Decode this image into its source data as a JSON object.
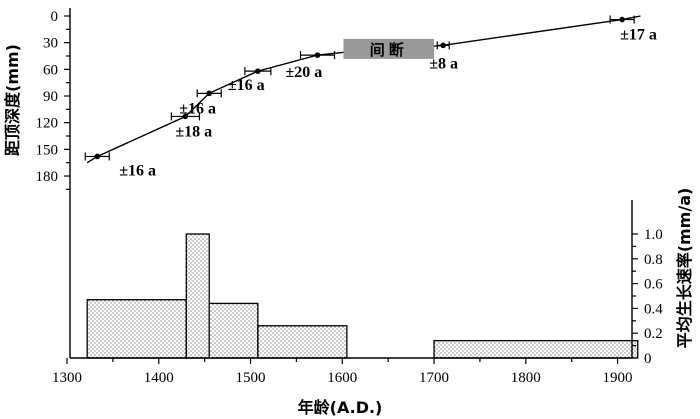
{
  "chart_data": {
    "type": "line",
    "x_axis": {
      "label": "年龄(A.D.)",
      "range": [
        1300,
        1930
      ],
      "ticks": [
        1300,
        1400,
        1500,
        1600,
        1700,
        1800,
        1900
      ]
    },
    "y_axis_left": {
      "label": "距顶深度(mm)",
      "range": [
        0,
        180
      ],
      "reversed": true,
      "ticks": [
        0,
        30,
        60,
        90,
        120,
        150,
        180
      ]
    },
    "y_axis_right": {
      "label": "平均生长速率(mm/a)",
      "range": [
        0,
        1.0
      ],
      "ticks": [
        "0",
        "0.2",
        "0.4",
        "0.6",
        "0.8",
        "1.0"
      ]
    },
    "age_points": [
      {
        "age": 1333,
        "depth": 158,
        "error": "±16 a"
      },
      {
        "age": 1429,
        "depth": 113,
        "error": "±18 a"
      },
      {
        "age": 1455,
        "depth": 87,
        "error": "±16 a"
      },
      {
        "age": 1508,
        "depth": 62,
        "error": "±16 a"
      },
      {
        "age": 1573,
        "depth": 44,
        "error": "±20 a"
      },
      {
        "age": 1710,
        "depth": 33,
        "error": "±8 a"
      },
      {
        "age": 1905,
        "depth": 4,
        "error": "±17 a"
      }
    ],
    "age_line": [
      {
        "age": 1322,
        "depth": 165
      },
      {
        "age": 1333,
        "depth": 158
      },
      {
        "age": 1429,
        "depth": 113
      },
      {
        "age": 1455,
        "depth": 87
      },
      {
        "age": 1508,
        "depth": 62
      },
      {
        "age": 1573,
        "depth": 44
      },
      {
        "age": 1610,
        "depth": 40
      },
      {
        "age": 1700,
        "depth": 34
      },
      {
        "age": 1710,
        "depth": 33
      },
      {
        "age": 1905,
        "depth": 4
      },
      {
        "age": 1925,
        "depth": 0
      }
    ],
    "hiatus": {
      "label": "间断",
      "age_start": 1610,
      "age_end": 1700,
      "depth": 37
    },
    "growth_rate": [
      {
        "from": 1322,
        "to": 1430,
        "rate": 0.47
      },
      {
        "from": 1430,
        "to": 1455,
        "rate": 1.0
      },
      {
        "from": 1455,
        "to": 1508,
        "rate": 0.44
      },
      {
        "from": 1508,
        "to": 1605,
        "rate": 0.26
      },
      {
        "from": 1700,
        "to": 1922,
        "rate": 0.14
      }
    ]
  }
}
